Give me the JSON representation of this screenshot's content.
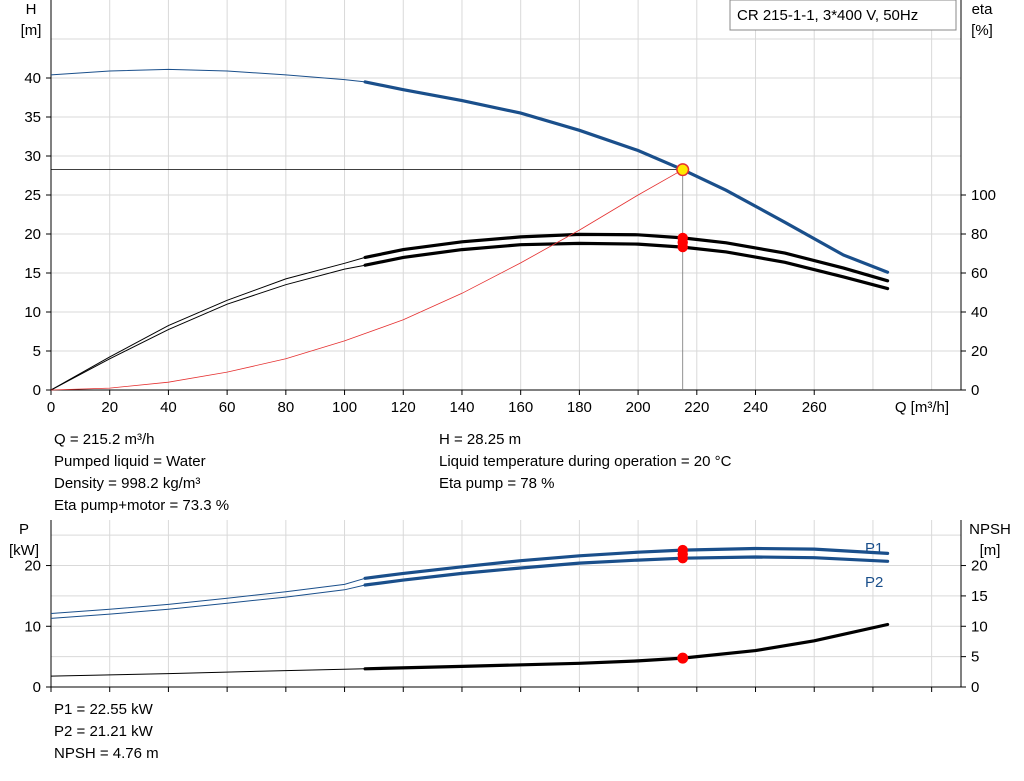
{
  "chart_data": [
    {
      "type": "line",
      "chart_id": "head-efficiency",
      "legend_label": "CR 215-1-1, 3*400 V, 50Hz",
      "y_label_left": "H",
      "y_unit_left": "[m]",
      "y_label_right": "eta",
      "y_unit_right": "[%]",
      "x_label": "Q [m³/h]",
      "xlim": [
        0,
        310
      ],
      "ylim_left": [
        0,
        50
      ],
      "ylim_right": [
        0,
        200
      ],
      "x_ticks": [
        0,
        20,
        40,
        60,
        80,
        100,
        120,
        140,
        160,
        180,
        200,
        220,
        240,
        260
      ],
      "y_ticks_left": [
        0,
        5,
        10,
        15,
        20,
        25,
        30,
        35,
        40
      ],
      "y_ticks_right": [
        0,
        20,
        40,
        60,
        80,
        100
      ],
      "grid": true,
      "series": [
        {
          "color": "#1a4f8b",
          "axis": "left",
          "style": "thin-thick",
          "split_x": 107,
          "x": [
            0,
            20,
            40,
            60,
            80,
            100,
            107,
            120,
            140,
            160,
            180,
            200,
            215.2,
            230,
            250,
            270,
            285
          ],
          "y": [
            40.4,
            40.9,
            41.1,
            40.9,
            40.4,
            39.8,
            39.5,
            38.5,
            37.1,
            35.5,
            33.3,
            30.7,
            28.25,
            25.6,
            21.5,
            17.3,
            15.1
          ]
        },
        {
          "color": "#000000",
          "axis": "right",
          "style": "thin-thick",
          "split_x": 107,
          "x": [
            0,
            20,
            40,
            60,
            80,
            100,
            107,
            120,
            140,
            160,
            180,
            200,
            215.2,
            230,
            250,
            270,
            285
          ],
          "y": [
            0,
            17,
            33,
            46,
            57,
            65,
            68,
            72,
            76,
            78.5,
            79.8,
            79.6,
            78.0,
            75.5,
            70.2,
            62.5,
            56
          ]
        },
        {
          "color": "#000000",
          "axis": "right",
          "style": "thin-thick",
          "split_x": 107,
          "x": [
            0,
            20,
            40,
            60,
            80,
            100,
            107,
            120,
            140,
            160,
            180,
            200,
            215.2,
            230,
            250,
            270,
            285
          ],
          "y": [
            0,
            16,
            31,
            44,
            54,
            62,
            64,
            68,
            72,
            74.5,
            75.2,
            74.8,
            73.3,
            70.8,
            65.5,
            58,
            52
          ]
        },
        {
          "color": "#e53030",
          "axis": "left",
          "style": "thin",
          "x": [
            0,
            20,
            40,
            60,
            80,
            100,
            120,
            140,
            160,
            180,
            200,
            215.2
          ],
          "y": [
            0,
            0.25,
            1.0,
            2.3,
            4.0,
            6.3,
            9.0,
            12.4,
            16.3,
            20.5,
            25.0,
            28.25
          ]
        }
      ],
      "operating_point": {
        "x": 215.2,
        "y_head": 28.25,
        "y_eta": [
          78,
          73.3
        ],
        "colors": [
          "#ffe800",
          "#ff0000"
        ]
      }
    },
    {
      "type": "line",
      "chart_id": "power-npsh",
      "y_label_left": "P",
      "y_unit_left": "[kW]",
      "y_label_right": "NPSH",
      "y_unit_right": "[m]",
      "xlim": [
        0,
        310
      ],
      "ylim_left": [
        0,
        27.5
      ],
      "ylim_right": [
        0,
        27.5
      ],
      "y_ticks_left": [
        0,
        10,
        20
      ],
      "y_ticks_right": [
        0,
        5,
        10,
        15,
        20
      ],
      "grid": true,
      "series": [
        {
          "name": "P1",
          "color": "#1a4f8b",
          "axis": "left",
          "style": "thin-thick",
          "split_x": 107,
          "x": [
            0,
            20,
            40,
            60,
            80,
            100,
            107,
            120,
            140,
            160,
            180,
            200,
            215.2,
            240,
            260,
            285
          ],
          "y": [
            12.1,
            12.8,
            13.6,
            14.6,
            15.7,
            16.9,
            17.9,
            18.7,
            19.8,
            20.8,
            21.6,
            22.2,
            22.55,
            22.8,
            22.7,
            22.0
          ]
        },
        {
          "name": "P2",
          "color": "#1a4f8b",
          "axis": "left",
          "style": "thin-thick",
          "split_x": 107,
          "x": [
            0,
            20,
            40,
            60,
            80,
            100,
            107,
            120,
            140,
            160,
            180,
            200,
            215.2,
            240,
            260,
            285
          ],
          "y": [
            11.3,
            12.0,
            12.8,
            13.8,
            14.8,
            16.0,
            16.8,
            17.6,
            18.7,
            19.6,
            20.4,
            20.9,
            21.21,
            21.4,
            21.3,
            20.7
          ]
        },
        {
          "color": "#000000",
          "axis": "right",
          "style": "thin-thick",
          "split_x": 107,
          "x": [
            0,
            40,
            80,
            107,
            140,
            180,
            200,
            215.2,
            240,
            260,
            285
          ],
          "y": [
            1.8,
            2.2,
            2.7,
            3.0,
            3.4,
            3.9,
            4.3,
            4.76,
            6.0,
            7.6,
            10.3
          ]
        }
      ],
      "operating_point": {
        "x": 215.2,
        "y_left": [
          22.55,
          21.21
        ],
        "y_right": [
          4.76
        ],
        "colors": [
          "#ff0000"
        ]
      }
    }
  ],
  "info_top_left": [
    "Q = 215.2 m³/h",
    "Pumped liquid = Water",
    "Density = 998.2 kg/m³",
    "Eta pump+motor = 73.3 %"
  ],
  "info_top_right": [
    "H = 28.25 m",
    "Liquid temperature during operation = 20 °C",
    "Eta pump = 78 %"
  ],
  "info_bottom": [
    "P1 = 22.55 kW",
    "P2 = 21.21 kW",
    "NPSH = 4.76 m"
  ]
}
